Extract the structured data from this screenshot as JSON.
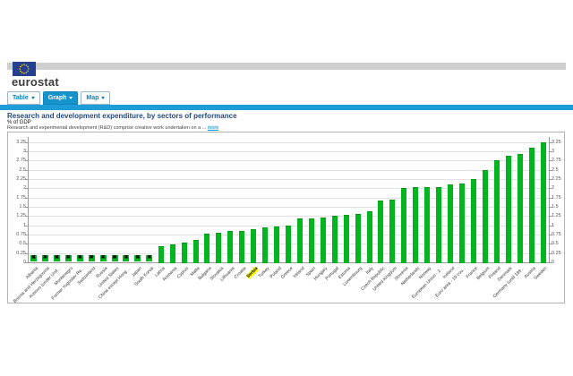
{
  "header": {
    "brand": "eurostat",
    "tabs": [
      {
        "label": "Table",
        "active": false
      },
      {
        "label": "Graph",
        "active": true
      },
      {
        "label": "Map",
        "active": false
      }
    ]
  },
  "title_block": {
    "title": "Research and development expenditure, by sectors of performance",
    "subtitle": "% of GDP",
    "description": "Research and experimental development (R&D) comprise creative work undertaken on a ...",
    "more_link": "more"
  },
  "colors": {
    "accent_blue": "#1e9cd7",
    "bar_green": "#00b61e",
    "highlight_yellow": "#ffff00",
    "banner_gray": "#cfcfcf"
  },
  "chart_data": {
    "type": "bar",
    "title": "Research and development expenditure, by sectors of performance",
    "xlabel": "",
    "ylabel": "% of GDP",
    "ylim": [
      0,
      3.4
    ],
    "yticks": [
      "0",
      "0.25",
      "0.5",
      "0.75",
      "1",
      "1.25",
      "1.5",
      "1.75",
      "2",
      "2.25",
      "2.5",
      "2.75",
      "3",
      "3.25"
    ],
    "grid": true,
    "legend": false,
    "bar_color": "#00b61e",
    "missing_marker": "✖",
    "highlighted_category": "Serbia",
    "highlight_color": "#ffff00",
    "categories": [
      "Albania",
      "Bosnia and Herzegovina",
      "Kosovo (under Unit...",
      "Montenegro",
      "Former Yugoslav Re...",
      "Switzerland",
      "Russia",
      "United States",
      "China except Hong ...",
      "Japan",
      "South Korea",
      "Latvia",
      "Romania",
      "Cyprus",
      "Malta",
      "Bulgaria",
      "Slovakia",
      "Lithuania",
      "Croatia",
      "Serbia",
      "Turkey",
      "Poland",
      "Greece",
      "Ireland",
      "Spain",
      "Hungary",
      "Portugal",
      "Estonia",
      "Luxembourg",
      "Italy",
      "Czech Republic",
      "United Kingdom",
      "Slovenia",
      "Netherlands",
      "Norway",
      "European Union - 2...",
      "Iceland",
      "Euro area - 19 cou...",
      "France",
      "Belgium",
      "Finland",
      "Denmark",
      "Germany (until 199...",
      "Austria",
      "Sweden"
    ],
    "values": [
      null,
      null,
      null,
      null,
      null,
      null,
      null,
      null,
      null,
      null,
      null,
      0.44,
      0.48,
      0.53,
      0.61,
      0.78,
      0.79,
      0.85,
      0.85,
      0.89,
      0.94,
      0.97,
      0.99,
      1.18,
      1.19,
      1.21,
      1.27,
      1.28,
      1.3,
      1.37,
      1.68,
      1.69,
      2.0,
      2.03,
      2.03,
      2.03,
      2.1,
      2.12,
      2.25,
      2.49,
      2.75,
      2.87,
      2.94,
      3.09,
      3.25
    ]
  }
}
